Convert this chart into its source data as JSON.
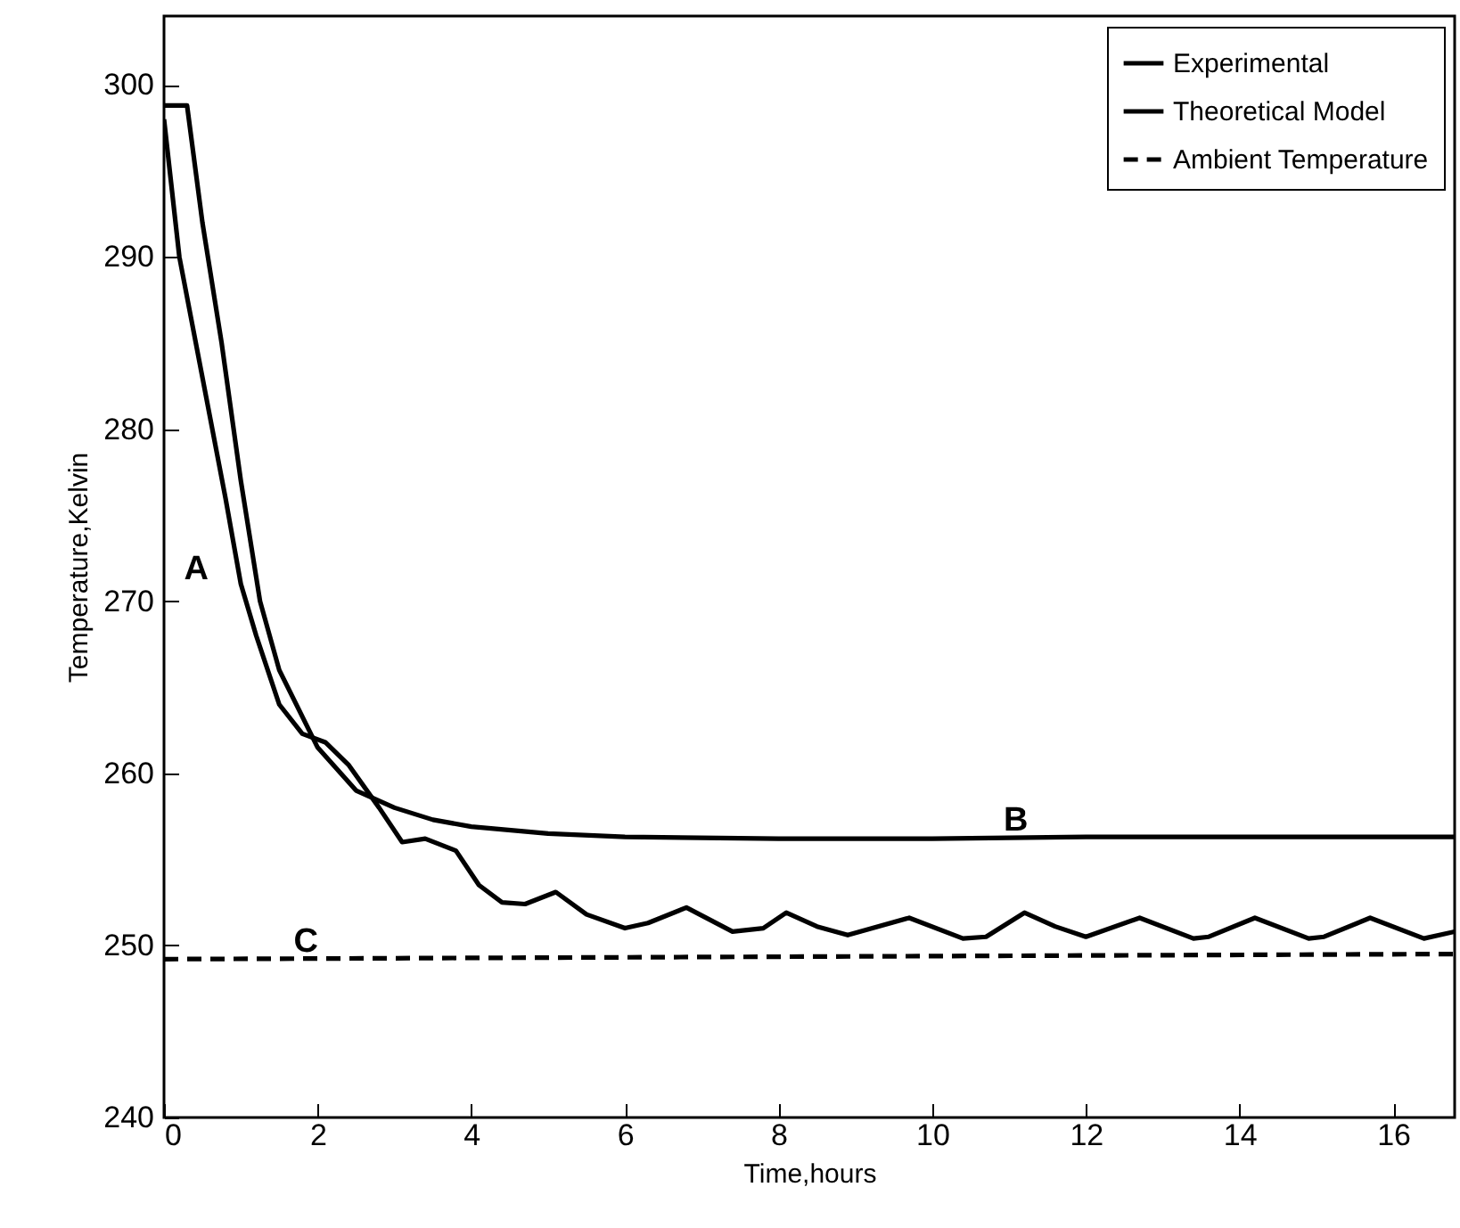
{
  "chart_data": {
    "type": "line",
    "xlabel": "Time,hours",
    "ylabel": "Temperature,Kelvin",
    "xlim": [
      0,
      16.8
    ],
    "ylim": [
      240,
      304
    ],
    "xticks": [
      0,
      2,
      4,
      6,
      8,
      10,
      12,
      14,
      16
    ],
    "yticks": [
      240,
      250,
      260,
      270,
      280,
      290,
      300
    ],
    "grid": false,
    "legend": "top right",
    "marker": "none",
    "series": [
      {
        "name": "Experimental",
        "color": "#000000",
        "line_style": "solid",
        "x": [
          0,
          0.2,
          0.5,
          0.8,
          1.0,
          1.2,
          1.5,
          1.8,
          2.1,
          2.4,
          2.8,
          3.1,
          3.4,
          3.8,
          4.1,
          4.4,
          4.7,
          5.1,
          5.5,
          6.0,
          6.3,
          6.8,
          7.4,
          7.8,
          8.1,
          8.5,
          8.9,
          9.7,
          10.4,
          10.7,
          11.2,
          11.6,
          12.0,
          12.7,
          13.4,
          13.6,
          14.2,
          14.9,
          15.1,
          15.7,
          16.4,
          16.8
        ],
        "values": [
          298,
          290,
          283,
          276,
          271,
          268,
          264,
          262.3,
          261.8,
          260.5,
          258,
          256,
          256.2,
          255.5,
          253.5,
          252.5,
          252.4,
          253.1,
          251.8,
          251,
          251.3,
          252.2,
          250.8,
          251,
          251.9,
          251.1,
          250.6,
          251.6,
          250.4,
          250.5,
          251.9,
          251.1,
          250.5,
          251.6,
          250.4,
          250.5,
          251.6,
          250.4,
          250.5,
          251.6,
          250.4,
          250.8
        ]
      },
      {
        "name": "Theoretical Model",
        "color": "#000000",
        "line_style": "solid",
        "x": [
          0,
          0.3,
          0.5,
          0.75,
          1,
          1.25,
          1.5,
          2,
          2.5,
          3,
          3.5,
          4,
          5,
          6,
          8,
          10,
          12,
          14,
          16,
          16.8
        ],
        "values": [
          298.8,
          298.8,
          292,
          285,
          277,
          270,
          266,
          261.5,
          259,
          258,
          257.3,
          256.9,
          256.5,
          256.3,
          256.2,
          256.2,
          256.3,
          256.3,
          256.3,
          256.3
        ]
      },
      {
        "name": "Ambient Temperature",
        "color": "#000000",
        "line_style": "dashed",
        "x": [
          0,
          16.8
        ],
        "values": [
          249.2,
          249.5
        ]
      }
    ],
    "annotations": [
      "A",
      "B",
      "C"
    ]
  }
}
